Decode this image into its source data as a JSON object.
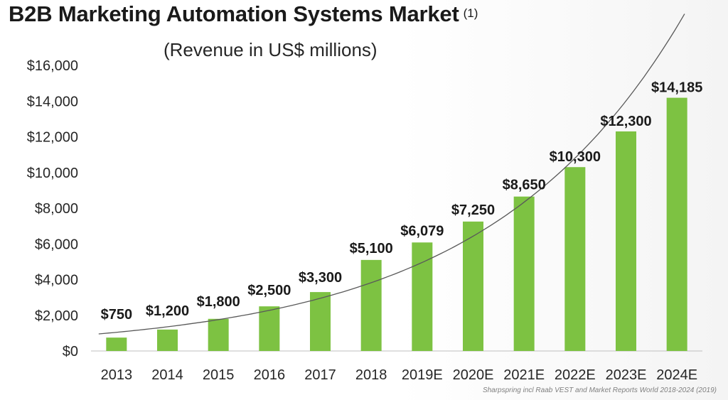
{
  "chart_data": {
    "type": "bar",
    "title": "B2B Marketing Automation Systems Market",
    "title_note": "(1)",
    "subtitle": "(Revenue in US$ millions)",
    "categories": [
      "2013",
      "2014",
      "2015",
      "2016",
      "2017",
      "2018",
      "2019E",
      "2020E",
      "2021E",
      "2022E",
      "2023E",
      "2024E"
    ],
    "values": [
      750,
      1200,
      1800,
      2500,
      3300,
      5100,
      6079,
      7250,
      8650,
      10300,
      12300,
      14185
    ],
    "data_labels": [
      "$750",
      "$1,200",
      "$1,800",
      "$2,500",
      "$3,300",
      "$5,100",
      "$6,079",
      "$7,250",
      "$8,650",
      "$10,300",
      "$12,300",
      "$14,185"
    ],
    "ylim": [
      0,
      16000
    ],
    "y_ticks": [
      0,
      2000,
      4000,
      6000,
      8000,
      10000,
      12000,
      14000,
      16000
    ],
    "y_tick_labels": [
      "$0",
      "$2,000",
      "$4,000",
      "$6,000",
      "$8,000",
      "$10,000",
      "$12,000",
      "$14,000",
      "$16,000"
    ],
    "xlabel": "",
    "ylabel": "",
    "bar_color": "#7dc242",
    "trendline": true,
    "grid": false,
    "source": "Sharpspring  incl Raab VEST and Market Reports World 2018-2024 (2019)"
  }
}
